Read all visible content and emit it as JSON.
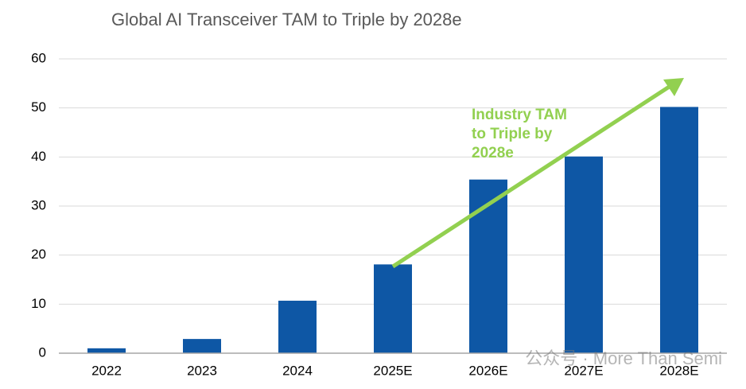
{
  "chart_data": {
    "type": "bar",
    "title": "Global AI Transceiver TAM to Triple by 2028e",
    "categories": [
      "2022",
      "2023",
      "2024",
      "2025E",
      "2026E",
      "2027E",
      "2028E"
    ],
    "values": [
      1.0,
      2.9,
      10.7,
      18.1,
      35.4,
      40.1,
      50.2
    ],
    "color": "#0e57a5",
    "ylim": [
      0,
      60
    ],
    "yticks": [
      0,
      10,
      20,
      30,
      40,
      50,
      60
    ],
    "grid": true,
    "annotation": {
      "text": [
        "Industry TAM",
        "to Triple by",
        "2028e"
      ],
      "color": "#92d050"
    },
    "watermark": "公众号 · More Than Semi"
  }
}
